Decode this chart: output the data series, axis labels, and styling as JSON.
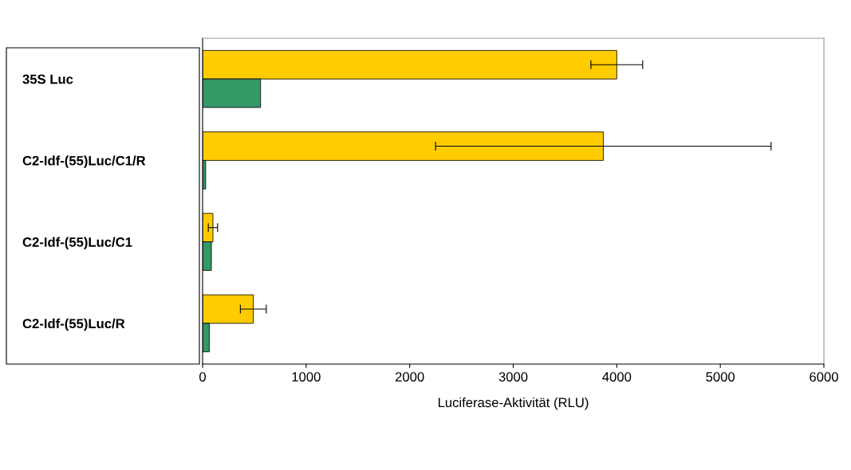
{
  "chart_data": {
    "type": "bar",
    "orientation": "horizontal",
    "xlabel": "Luciferase-Aktivität (RLU)",
    "categories": [
      "35S Luc",
      "C2-Idf-(55)Luc/C1/R",
      "C2-Idf-(55)Luc/C1",
      "C2-Idf-(55)Luc/R"
    ],
    "series": [
      {
        "color": "#ffcc00",
        "values": [
          4000,
          3870,
          100,
          490
        ],
        "errors": [
          250,
          1620,
          45,
          125
        ]
      },
      {
        "color": "#339966",
        "values": [
          560,
          30,
          85,
          65
        ]
      }
    ],
    "xlim": [
      0,
      6000
    ],
    "xticks": [
      0,
      1000,
      2000,
      3000,
      4000,
      5000,
      6000
    ],
    "grid": false,
    "legend": false
  }
}
